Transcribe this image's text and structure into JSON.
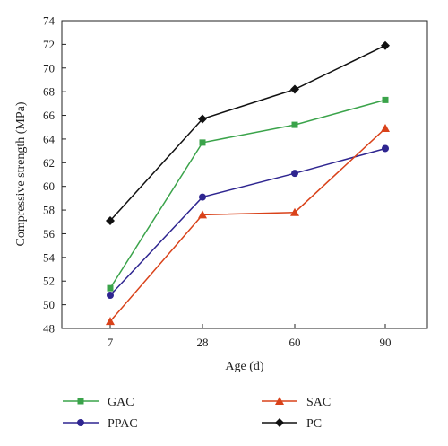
{
  "chart_data": {
    "type": "line",
    "xlabel": "Age (d)",
    "ylabel": "Compressive strength (MPa)",
    "categories": [
      "7",
      "28",
      "60",
      "90"
    ],
    "ylim": [
      48,
      74
    ],
    "yticks": [
      48,
      50,
      52,
      54,
      56,
      58,
      60,
      62,
      64,
      66,
      68,
      70,
      72,
      74
    ],
    "grid": false,
    "legend_position": "bottom",
    "series": [
      {
        "name": "GAC",
        "color": "#3aa34a",
        "marker": "square",
        "values": [
          51.4,
          63.7,
          65.2,
          67.3
        ]
      },
      {
        "name": "PPAC",
        "color": "#2e2590",
        "marker": "circle",
        "values": [
          50.8,
          59.1,
          61.1,
          63.2
        ]
      },
      {
        "name": "SAC",
        "color": "#d9421a",
        "marker": "triangle",
        "values": [
          48.6,
          57.6,
          57.8,
          64.9
        ]
      },
      {
        "name": "PC",
        "color": "#111111",
        "marker": "diamond",
        "values": [
          57.1,
          65.7,
          68.2,
          71.9
        ]
      }
    ]
  }
}
